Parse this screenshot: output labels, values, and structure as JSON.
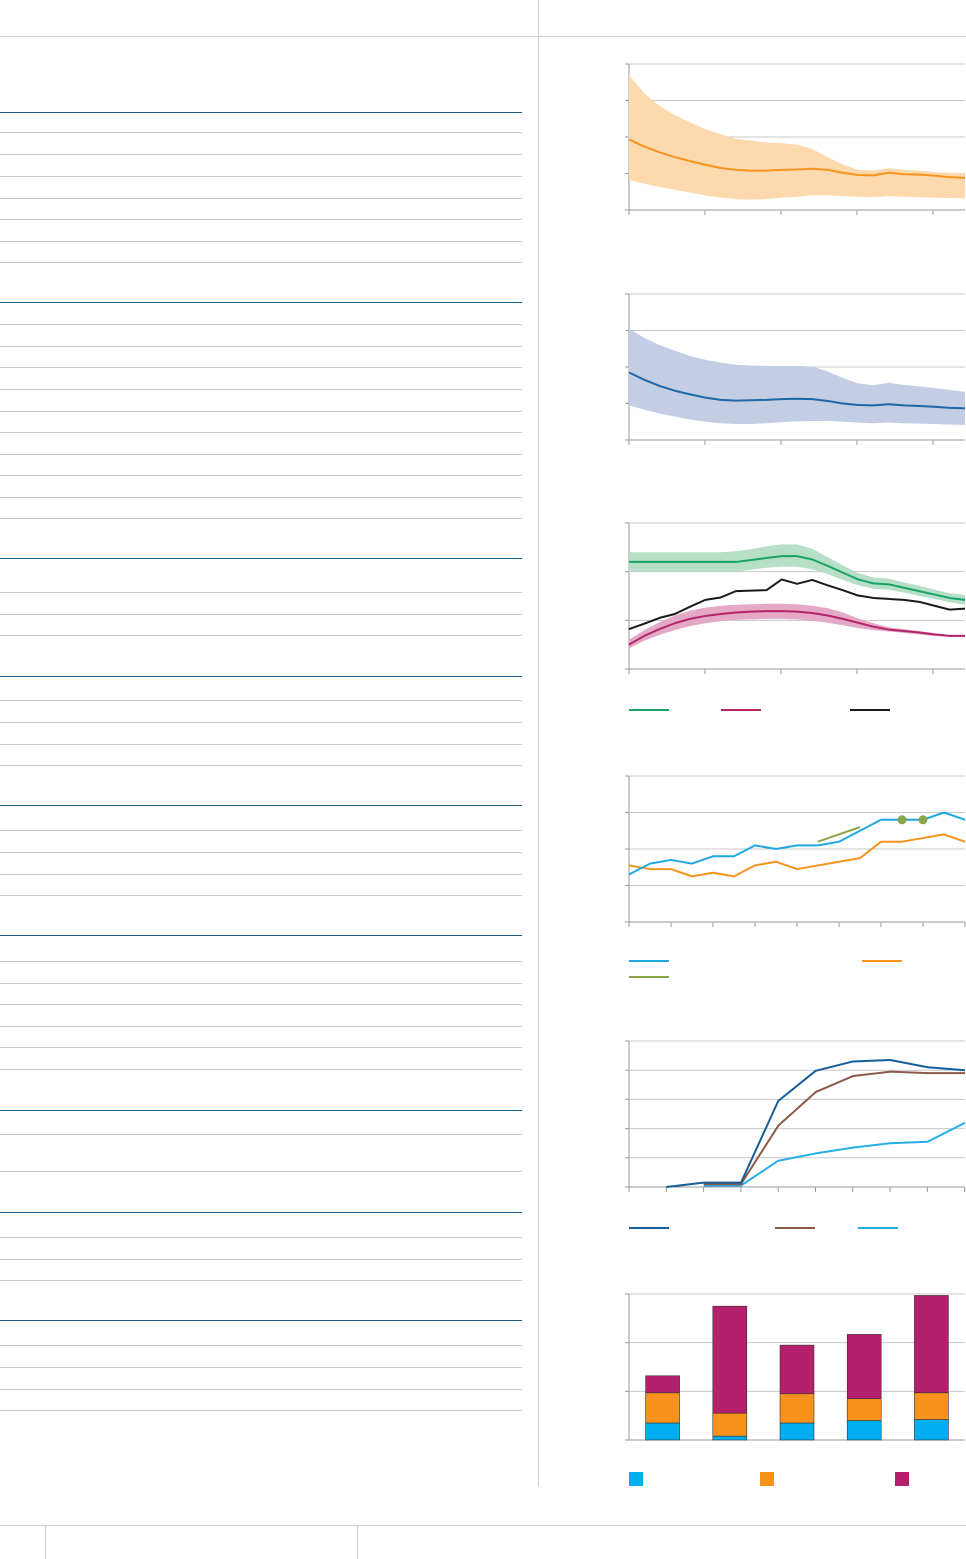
{
  "colors": {
    "orange": "#f7931d",
    "orange_band": "#fdd9ae",
    "blue": "#1f68a8",
    "blue_band": "#c3cde3",
    "green": "#19a36b",
    "green_band": "#b7dfc8",
    "magenta": "#b4256b",
    "magenta_band": "#e3a9c7",
    "black": "#1a1a1a",
    "cyan": "#21a8e0",
    "olive": "#8aa64a",
    "navy": "#155e99",
    "brown": "#8b5a4a",
    "sky": "#26aee8",
    "bar_blue": "#00aeef",
    "bar_orange": "#f7931d",
    "bar_magenta": "#b5206e",
    "rule_dark": "#1d5a86",
    "rule_light": "#c9c9c9"
  },
  "chart_data": [
    {
      "type": "area",
      "ylim": [
        0,
        4
      ],
      "grid": true,
      "series": [
        {
          "x": [
            0,
            1,
            2,
            3,
            4,
            5,
            6,
            7,
            8,
            9,
            10,
            11,
            12,
            13,
            14,
            15,
            16,
            17,
            18,
            19,
            20,
            21,
            22
          ],
          "values": [
            1.93,
            1.74,
            1.58,
            1.45,
            1.34,
            1.24,
            1.15,
            1.1,
            1.08,
            1.08,
            1.1,
            1.11,
            1.13,
            1.1,
            1.02,
            0.96,
            0.95,
            1.02,
            0.98,
            0.97,
            0.94,
            0.9,
            0.88
          ],
          "lower": [
            0.82,
            0.72,
            0.63,
            0.55,
            0.48,
            0.4,
            0.34,
            0.3,
            0.28,
            0.3,
            0.34,
            0.36,
            0.4,
            0.4,
            0.38,
            0.36,
            0.35,
            0.38,
            0.36,
            0.35,
            0.34,
            0.33,
            0.32
          ],
          "upper": [
            3.7,
            3.2,
            2.85,
            2.6,
            2.4,
            2.22,
            2.08,
            1.95,
            1.9,
            1.85,
            1.83,
            1.79,
            1.67,
            1.45,
            1.25,
            1.1,
            1.08,
            1.15,
            1.1,
            1.08,
            1.04,
            1.02,
            1.0
          ]
        }
      ]
    },
    {
      "type": "area",
      "ylim": [
        0,
        4
      ],
      "grid": true,
      "series": [
        {
          "x": [
            0,
            1,
            2,
            3,
            4,
            5,
            6,
            7,
            8,
            9,
            10,
            11,
            12,
            13,
            14,
            15,
            16,
            17,
            18,
            19,
            20,
            21,
            22
          ],
          "values": [
            1.85,
            1.65,
            1.48,
            1.35,
            1.25,
            1.16,
            1.1,
            1.08,
            1.09,
            1.1,
            1.12,
            1.13,
            1.12,
            1.07,
            1.0,
            0.96,
            0.95,
            0.98,
            0.95,
            0.93,
            0.91,
            0.88,
            0.87
          ],
          "lower": [
            0.95,
            0.83,
            0.73,
            0.64,
            0.56,
            0.5,
            0.46,
            0.44,
            0.44,
            0.46,
            0.49,
            0.51,
            0.52,
            0.52,
            0.5,
            0.48,
            0.46,
            0.48,
            0.46,
            0.45,
            0.44,
            0.42,
            0.41
          ],
          "upper": [
            3.05,
            2.8,
            2.6,
            2.45,
            2.3,
            2.2,
            2.12,
            2.06,
            2.04,
            2.03,
            2.03,
            2.03,
            2.01,
            1.88,
            1.7,
            1.55,
            1.5,
            1.57,
            1.51,
            1.47,
            1.42,
            1.37,
            1.32
          ]
        }
      ]
    },
    {
      "type": "line",
      "ylim": [
        0,
        3
      ],
      "grid": true,
      "series": [
        {
          "x": [
            0,
            1,
            2,
            3,
            4,
            5,
            6,
            7,
            8,
            9,
            10,
            11,
            12,
            13,
            14,
            15,
            16,
            17,
            18,
            19,
            20,
            21,
            22
          ],
          "values": [
            2.2,
            2.2,
            2.2,
            2.2,
            2.2,
            2.2,
            2.2,
            2.2,
            2.24,
            2.28,
            2.32,
            2.32,
            2.25,
            2.12,
            1.98,
            1.84,
            1.76,
            1.74,
            1.67,
            1.6,
            1.53,
            1.46,
            1.42
          ],
          "lower": [
            2.0,
            2.0,
            2.0,
            2.0,
            2.0,
            2.0,
            2.0,
            2.0,
            2.04,
            2.08,
            2.1,
            2.1,
            2.05,
            1.95,
            1.83,
            1.72,
            1.65,
            1.63,
            1.57,
            1.5,
            1.44,
            1.37,
            1.32
          ],
          "upper": [
            2.4,
            2.4,
            2.4,
            2.4,
            2.4,
            2.4,
            2.4,
            2.42,
            2.46,
            2.52,
            2.56,
            2.56,
            2.47,
            2.3,
            2.13,
            1.97,
            1.88,
            1.86,
            1.78,
            1.71,
            1.63,
            1.56,
            1.52
          ]
        },
        {
          "x": [
            0,
            1,
            2,
            3,
            4,
            5,
            6,
            7,
            8,
            9,
            10,
            11,
            12,
            13,
            14,
            15,
            16,
            17,
            18,
            19,
            20,
            21,
            22
          ],
          "values": [
            0.5,
            0.68,
            0.82,
            0.94,
            1.03,
            1.09,
            1.13,
            1.16,
            1.18,
            1.19,
            1.19,
            1.18,
            1.15,
            1.1,
            1.03,
            0.95,
            0.87,
            0.81,
            0.78,
            0.75,
            0.71,
            0.68,
            0.68
          ],
          "lower": [
            0.42,
            0.58,
            0.7,
            0.8,
            0.88,
            0.94,
            0.98,
            1.01,
            1.02,
            1.03,
            1.03,
            1.02,
            0.99,
            0.95,
            0.9,
            0.84,
            0.8,
            0.77,
            0.74,
            0.71,
            0.68,
            0.66,
            0.66
          ],
          "upper": [
            0.6,
            0.8,
            0.96,
            1.1,
            1.2,
            1.26,
            1.3,
            1.32,
            1.33,
            1.34,
            1.34,
            1.33,
            1.3,
            1.25,
            1.16,
            1.04,
            0.94,
            0.86,
            0.82,
            0.78,
            0.74,
            0.7,
            0.7
          ]
        },
        {
          "x": [
            0,
            1,
            2,
            3,
            4,
            5,
            6,
            7,
            8,
            9,
            10,
            11,
            12,
            13,
            14,
            15,
            16,
            17,
            18,
            19,
            20,
            21,
            22
          ],
          "values": [
            0.82,
            0.93,
            1.05,
            1.13,
            1.28,
            1.42,
            1.47,
            1.6,
            1.61,
            1.62,
            1.84,
            1.75,
            1.83,
            1.72,
            1.62,
            1.51,
            1.46,
            1.44,
            1.42,
            1.38,
            1.3,
            1.22,
            1.24
          ]
        }
      ]
    },
    {
      "type": "line",
      "ylim": [
        0,
        4
      ],
      "grid": true,
      "series": [
        {
          "x": [
            0,
            1,
            2,
            3,
            4,
            5,
            6,
            7,
            8,
            9,
            10,
            11,
            12,
            13,
            14,
            15,
            16
          ],
          "values": [
            1.3,
            1.6,
            1.7,
            1.6,
            1.8,
            1.8,
            2.1,
            2.0,
            2.1,
            2.1,
            2.2,
            2.5,
            2.8,
            2.8,
            2.8,
            3.0,
            2.8
          ]
        },
        {
          "x": [
            0,
            1,
            2,
            3,
            4,
            5,
            6,
            7,
            8,
            9,
            10,
            11,
            12,
            13,
            14,
            15,
            16
          ],
          "values": [
            1.55,
            1.45,
            1.45,
            1.25,
            1.35,
            1.25,
            1.55,
            1.65,
            1.45,
            1.55,
            1.65,
            1.75,
            2.2,
            2.2,
            2.3,
            2.4,
            2.2
          ]
        },
        {
          "x": [
            9,
            11
          ],
          "values": [
            2.2,
            2.6
          ]
        },
        {
          "type": "scatter",
          "x": [
            13,
            14
          ],
          "values": [
            2.8,
            2.8
          ]
        }
      ]
    },
    {
      "type": "line",
      "ylim": [
        0,
        5
      ],
      "grid": true,
      "series": [
        {
          "x": [
            1,
            2,
            3,
            4,
            5,
            6,
            7,
            8,
            9
          ],
          "values": [
            0.0,
            0.15,
            0.15,
            2.95,
            3.98,
            4.3,
            4.35,
            4.1,
            4.0
          ]
        },
        {
          "x": [
            2,
            3,
            4,
            5,
            6,
            7,
            8,
            9
          ],
          "values": [
            0.1,
            0.1,
            2.1,
            3.25,
            3.8,
            3.95,
            3.9,
            3.9
          ]
        },
        {
          "x": [
            2,
            3,
            4,
            5,
            6,
            7,
            8,
            9
          ],
          "values": [
            0.05,
            0.05,
            0.9,
            1.15,
            1.35,
            1.5,
            1.55,
            2.2
          ]
        }
      ]
    },
    {
      "type": "bar",
      "stacked": true,
      "ylim": [
        0,
        3
      ],
      "grid": true,
      "categories": [
        "",
        "",
        "",
        "",
        ""
      ],
      "series": [
        {
          "values": [
            0.35,
            0.08,
            0.35,
            0.4,
            0.42
          ]
        },
        {
          "values": [
            0.62,
            0.47,
            0.6,
            0.45,
            0.55
          ]
        },
        {
          "values": [
            0.35,
            2.2,
            1.0,
            1.32,
            2.0
          ]
        }
      ]
    }
  ]
}
